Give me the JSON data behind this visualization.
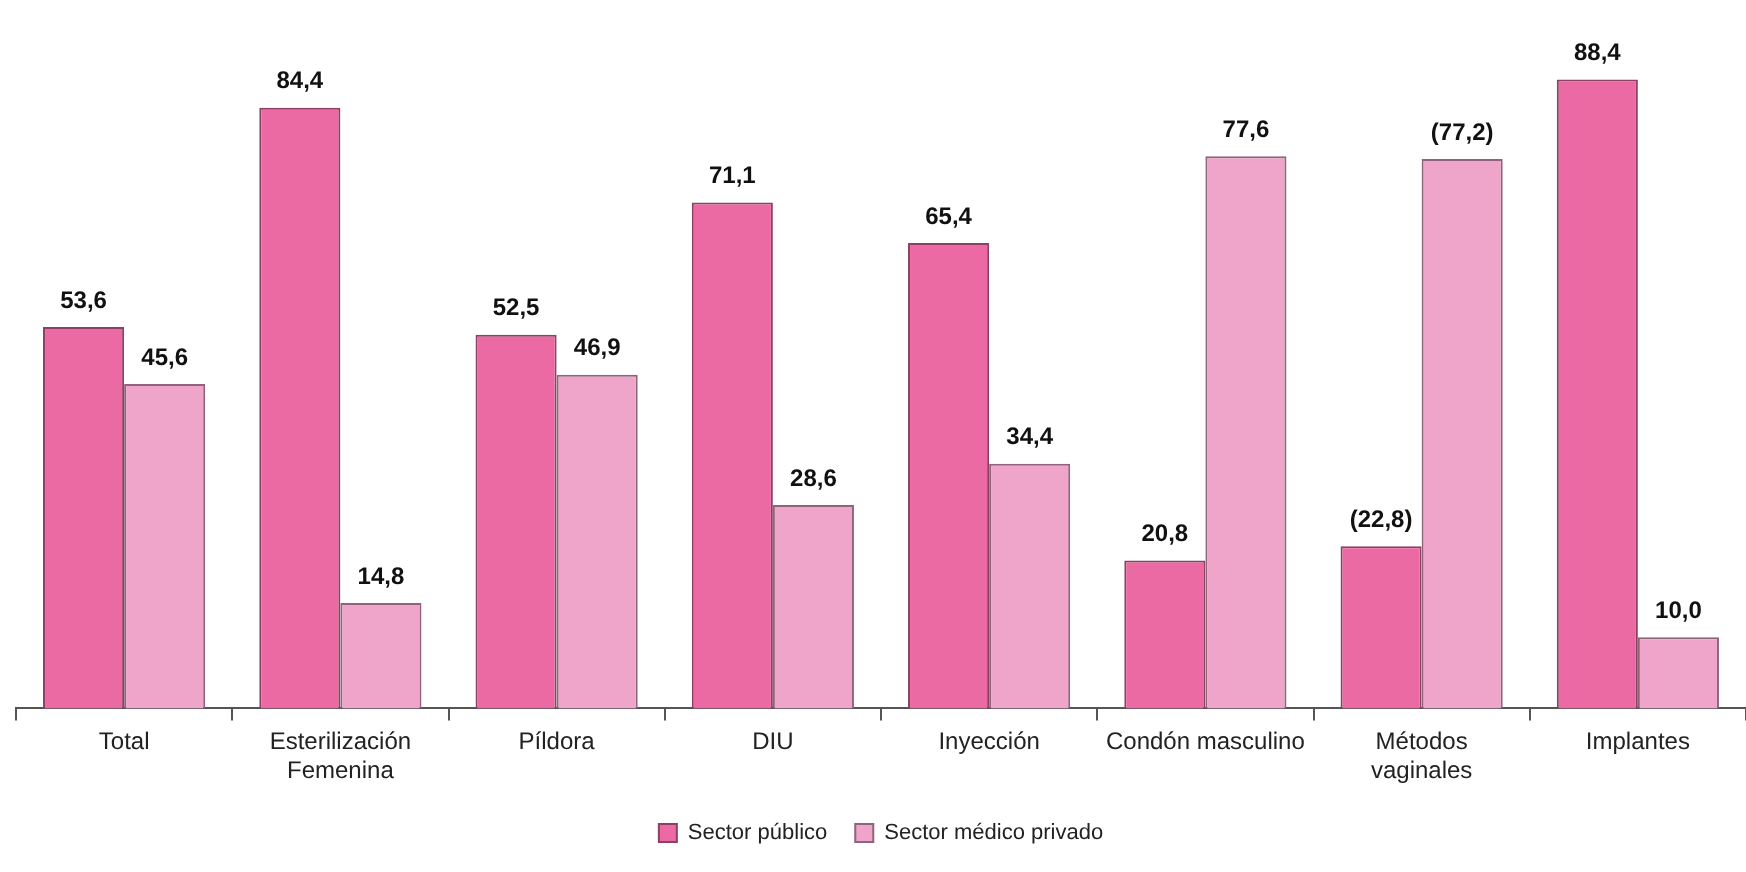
{
  "chart_data": {
    "type": "bar",
    "categories": [
      "Total",
      "Esterilización\nFemenina",
      "Píldora",
      "DIU",
      "Inyección",
      "Condón masculino",
      "Métodos\nvaginales",
      "Implantes"
    ],
    "series": [
      {
        "name": "Sector público",
        "color": "#ec6aa3",
        "values": [
          53.6,
          84.4,
          52.5,
          71.1,
          65.4,
          20.8,
          22.8,
          88.4
        ],
        "value_labels": [
          "53,6",
          "84,4",
          "52,5",
          "71,1",
          "65,4",
          "20,8",
          "(22,8)",
          "88,4"
        ]
      },
      {
        "name": "Sector médico privado",
        "color": "#eea5c9",
        "values": [
          45.6,
          14.8,
          46.9,
          28.6,
          34.4,
          77.6,
          77.2,
          10.0
        ],
        "value_labels": [
          "45,6",
          "14,8",
          "46,9",
          "28,6",
          "34,4",
          "77,6",
          "(77,2)",
          "10,0"
        ]
      }
    ],
    "legend": "bottom",
    "tick_labels": "x",
    "grid": false
  }
}
